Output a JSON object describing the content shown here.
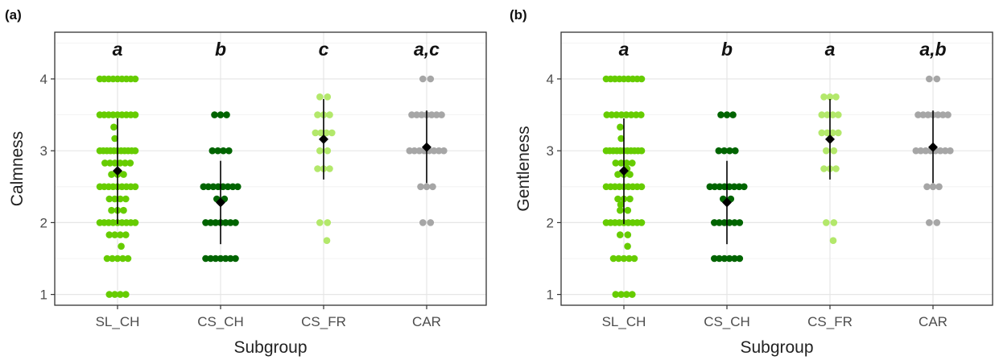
{
  "colors": {
    "SL_CH": "#66cc00",
    "CS_CH": "#006400",
    "CS_FR": "#b3e86b",
    "CAR": "#a6a6a6",
    "mean": "#000000",
    "grid": "#e6e6e6",
    "panel_border": "#333333"
  },
  "chart_data": [
    {
      "type": "scatter",
      "panel_label": "(a)",
      "xlabel": "Subgroup",
      "ylabel": "Calmness",
      "categories": [
        "SL_CH",
        "CS_CH",
        "CS_FR",
        "CAR"
      ],
      "ylim": [
        0.85,
        4.65
      ],
      "yticks": [
        "1",
        "2",
        "3",
        "4"
      ],
      "grid": true,
      "significance_letters": [
        "a",
        "b",
        "c",
        "a,c"
      ],
      "summary": [
        {
          "group": "SL_CH",
          "mean": 2.72,
          "lower": 1.98,
          "upper": 3.45
        },
        {
          "group": "CS_CH",
          "mean": 2.28,
          "lower": 1.7,
          "upper": 2.86
        },
        {
          "group": "CS_FR",
          "mean": 3.16,
          "lower": 2.6,
          "upper": 3.72
        },
        {
          "group": "CAR",
          "mean": 3.05,
          "lower": 2.55,
          "upper": 3.56
        }
      ],
      "points": [
        {
          "group": "SL_CH",
          "values": [
            4,
            4,
            4,
            4,
            4,
            4,
            4,
            4,
            4,
            3.5,
            3.5,
            3.5,
            3.5,
            3.5,
            3.5,
            3.5,
            3.5,
            3.5,
            3.33,
            3.17,
            3,
            3,
            3,
            3,
            3,
            3,
            3,
            3,
            3,
            3,
            3,
            2.83,
            2.83,
            2.83,
            2.83,
            2.83,
            2.83,
            2.67,
            2.67,
            2.67,
            2.5,
            2.5,
            2.5,
            2.5,
            2.5,
            2.5,
            2.5,
            2.5,
            2.5,
            2.33,
            2.33,
            2.33,
            2.33,
            2.17,
            2.17,
            2.17,
            2,
            2,
            2,
            2,
            2,
            2,
            2,
            2,
            2,
            1.83,
            1.83,
            1.83,
            1.83,
            1.67,
            1.5,
            1.5,
            1.5,
            1.5,
            1.5,
            1,
            1,
            1,
            1
          ]
        },
        {
          "group": "CS_CH",
          "values": [
            3.5,
            3.5,
            3.5,
            3,
            3,
            3,
            3,
            2.5,
            2.5,
            2.5,
            2.5,
            2.5,
            2.5,
            2.5,
            2.5,
            2.33,
            2.33,
            2,
            2,
            2,
            2,
            2,
            2,
            2,
            1.5,
            1.5,
            1.5,
            1.5,
            1.5,
            1.5,
            1.5
          ]
        },
        {
          "group": "CS_FR",
          "values": [
            3.75,
            3.75,
            3.5,
            3.5,
            3.5,
            3.25,
            3.25,
            3.25,
            3.25,
            3,
            3,
            2.75,
            2.75,
            2.75,
            2,
            2,
            1.75
          ]
        },
        {
          "group": "CAR",
          "values": [
            4,
            4,
            3.5,
            3.5,
            3.5,
            3.5,
            3.5,
            3.5,
            3.5,
            3,
            3,
            3,
            3,
            3,
            3,
            3,
            3,
            2.5,
            2.5,
            2.5,
            2,
            2
          ]
        }
      ]
    },
    {
      "type": "scatter",
      "panel_label": "(b)",
      "xlabel": "Subgroup",
      "ylabel": "Gentleness",
      "categories": [
        "SL_CH",
        "CS_CH",
        "CS_FR",
        "CAR"
      ],
      "ylim": [
        0.85,
        4.65
      ],
      "yticks": [
        "1",
        "2",
        "3",
        "4"
      ],
      "grid": true,
      "significance_letters": [
        "a",
        "b",
        "a",
        "a,b"
      ],
      "summary": [
        {
          "group": "SL_CH",
          "mean": 2.72,
          "lower": 1.98,
          "upper": 3.45
        },
        {
          "group": "CS_CH",
          "mean": 2.28,
          "lower": 1.7,
          "upper": 2.86
        },
        {
          "group": "CS_FR",
          "mean": 3.16,
          "lower": 2.6,
          "upper": 3.72
        },
        {
          "group": "CAR",
          "mean": 3.05,
          "lower": 2.55,
          "upper": 3.56
        }
      ],
      "points": [
        {
          "group": "SL_CH",
          "values": [
            4,
            4,
            4,
            4,
            4,
            4,
            4,
            4,
            4,
            3.5,
            3.5,
            3.5,
            3.5,
            3.5,
            3.5,
            3.5,
            3.5,
            3.33,
            3.17,
            3,
            3,
            3,
            3,
            3,
            3,
            3,
            3,
            3,
            3,
            3,
            2.83,
            2.83,
            2.83,
            2.83,
            2.75,
            2.67,
            2.67,
            2.67,
            2.5,
            2.5,
            2.5,
            2.5,
            2.5,
            2.5,
            2.5,
            2.5,
            2.5,
            2.33,
            2.33,
            2.33,
            2.25,
            2.17,
            2.17,
            2,
            2,
            2,
            2,
            2,
            2,
            2,
            2,
            2,
            1.83,
            1.83,
            1.67,
            1.5,
            1.5,
            1.5,
            1.5,
            1.5,
            1,
            1,
            1,
            1
          ]
        },
        {
          "group": "CS_CH",
          "values": [
            3.5,
            3.5,
            3.5,
            3,
            3,
            3,
            3,
            2.5,
            2.5,
            2.5,
            2.5,
            2.5,
            2.5,
            2.5,
            2.5,
            2.33,
            2.33,
            2,
            2,
            2,
            2,
            2,
            2,
            1.5,
            1.5,
            1.5,
            1.5,
            1.5,
            1.5
          ]
        },
        {
          "group": "CS_FR",
          "values": [
            3.75,
            3.75,
            3.75,
            3.5,
            3.5,
            3.5,
            3.5,
            3.25,
            3.25,
            3.25,
            3.25,
            3,
            3,
            2.75,
            2.75,
            2.75,
            2,
            2,
            1.75
          ]
        },
        {
          "group": "CAR",
          "values": [
            4,
            4,
            3.5,
            3.5,
            3.5,
            3.5,
            3.5,
            3.5,
            3.5,
            3,
            3,
            3,
            3,
            3,
            3,
            3,
            3,
            2.5,
            2.5,
            2.5,
            2,
            2
          ]
        }
      ]
    }
  ]
}
